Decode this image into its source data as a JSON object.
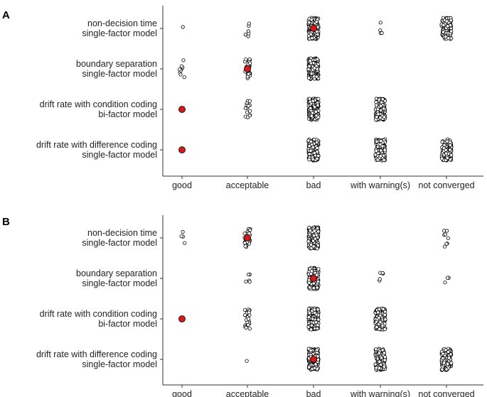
{
  "chart_data": [
    {
      "panel": "A",
      "type": "scatter",
      "x_categories": [
        "good",
        "acceptable",
        "bad",
        "with warning(s)",
        "not converged"
      ],
      "y_categories": [
        [
          "non-decision time",
          "single-factor model"
        ],
        [
          "boundary separation",
          "single-factor model"
        ],
        [
          "drift rate with condition coding",
          "bi-factor model"
        ],
        [
          "drift rate with difference coding",
          "single-factor model"
        ]
      ],
      "counts": [
        [
          1,
          6,
          200,
          4,
          100
        ],
        [
          9,
          30,
          200,
          0,
          0
        ],
        [
          0,
          15,
          200,
          120,
          0
        ],
        [
          0,
          0,
          200,
          100,
          120
        ]
      ],
      "highlight_category": [
        "bad",
        "acceptable",
        "good",
        "good"
      ],
      "grid": false
    },
    {
      "panel": "B",
      "type": "scatter",
      "x_categories": [
        "good",
        "acceptable",
        "bad",
        "with warning(s)",
        "not converged"
      ],
      "y_categories": [
        [
          "non-decision time",
          "single-factor model"
        ],
        [
          "boundary separation",
          "single-factor model"
        ],
        [
          "drift rate with condition coding",
          "bi-factor model"
        ],
        [
          "drift rate with difference coding",
          "single-factor model"
        ]
      ],
      "counts": [
        [
          4,
          40,
          200,
          0,
          8
        ],
        [
          0,
          5,
          200,
          5,
          3
        ],
        [
          0,
          25,
          200,
          150,
          0
        ],
        [
          0,
          1,
          200,
          100,
          120
        ]
      ],
      "highlight_category": [
        "acceptable",
        "bad",
        "good",
        "bad"
      ],
      "grid": false
    }
  ]
}
